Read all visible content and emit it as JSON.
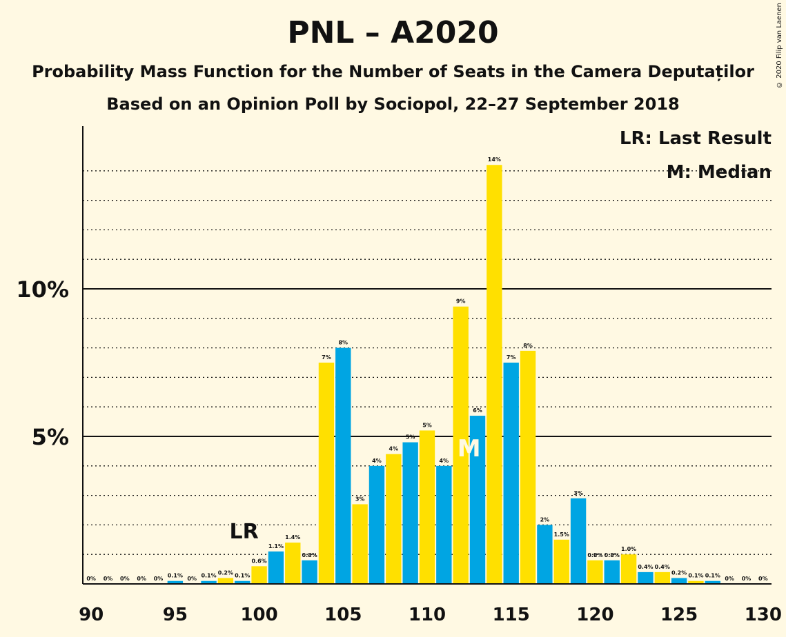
{
  "title": "PNL – A2020",
  "subtitle_1": "Probability Mass Function for the Number of Seats in the Camera Deputaților",
  "subtitle_2": "Based on an Opinion Poll by Sociopol, 22–27 September 2018",
  "copyright": "© 2020 Filip van Laenen",
  "legend": {
    "last_result": "LR: Last Result",
    "median": "M: Median"
  },
  "markers": {
    "last_result_label": "LR",
    "last_result_seat": 100,
    "median_label": "M",
    "median_seat": 112
  },
  "colors": {
    "background": "#FFF9E3",
    "blue": "#00A5E3",
    "yellow": "#FFE000",
    "text": "#111111"
  },
  "chart_data": {
    "type": "bar",
    "x": [
      90,
      91,
      92,
      93,
      94,
      95,
      96,
      97,
      98,
      99,
      100,
      101,
      102,
      103,
      104,
      105,
      106,
      107,
      108,
      109,
      110,
      111,
      112,
      113,
      114,
      115,
      116,
      117,
      118,
      119,
      120,
      121,
      122,
      123,
      124,
      125,
      126,
      127,
      128,
      129,
      130
    ],
    "values": [
      0,
      0,
      0,
      0,
      0,
      0.1,
      0,
      0.1,
      0.2,
      0.1,
      0.6,
      1.1,
      1.4,
      0.8,
      7.5,
      8.0,
      2.7,
      4.0,
      4.4,
      4.8,
      5.2,
      4.0,
      9.4,
      5.7,
      14.2,
      7.5,
      7.9,
      2.0,
      1.5,
      2.9,
      0.8,
      0.8,
      1.0,
      0.4,
      0.4,
      0.2,
      0.1,
      0.1,
      0,
      0,
      0
    ],
    "labels": [
      "0%",
      "0%",
      "0%",
      "0%",
      "0%",
      "0.1%",
      "0%",
      "0.1%",
      "0.2%",
      "0.1%",
      "0.6%",
      "1.1%",
      "1.4%",
      "0.8%",
      "7%",
      "8%",
      "3%",
      "4%",
      "4%",
      "5%",
      "5%",
      "4%",
      "9%",
      "6%",
      "14%",
      "7%",
      "8%",
      "2%",
      "1.5%",
      "3%",
      "0.8%",
      "0.8%",
      "1.0%",
      "0.4%",
      "0.4%",
      "0.2%",
      "0.1%",
      "0.1%",
      "0%",
      "0%",
      "0%"
    ],
    "xticks": [
      90,
      95,
      100,
      105,
      110,
      115,
      120,
      125,
      130
    ],
    "xtick_labels": [
      "90",
      "95",
      "100",
      "105",
      "110",
      "115",
      "120",
      "125",
      "130"
    ],
    "yticks": [
      5,
      10
    ],
    "ytick_labels": [
      "5%",
      "10%"
    ],
    "xlim": [
      89.5,
      130.5
    ],
    "ylim": [
      0,
      15.5
    ],
    "grid": "dotted every 1%, solid at 5% and 10%",
    "legend_placement": "top-right"
  }
}
